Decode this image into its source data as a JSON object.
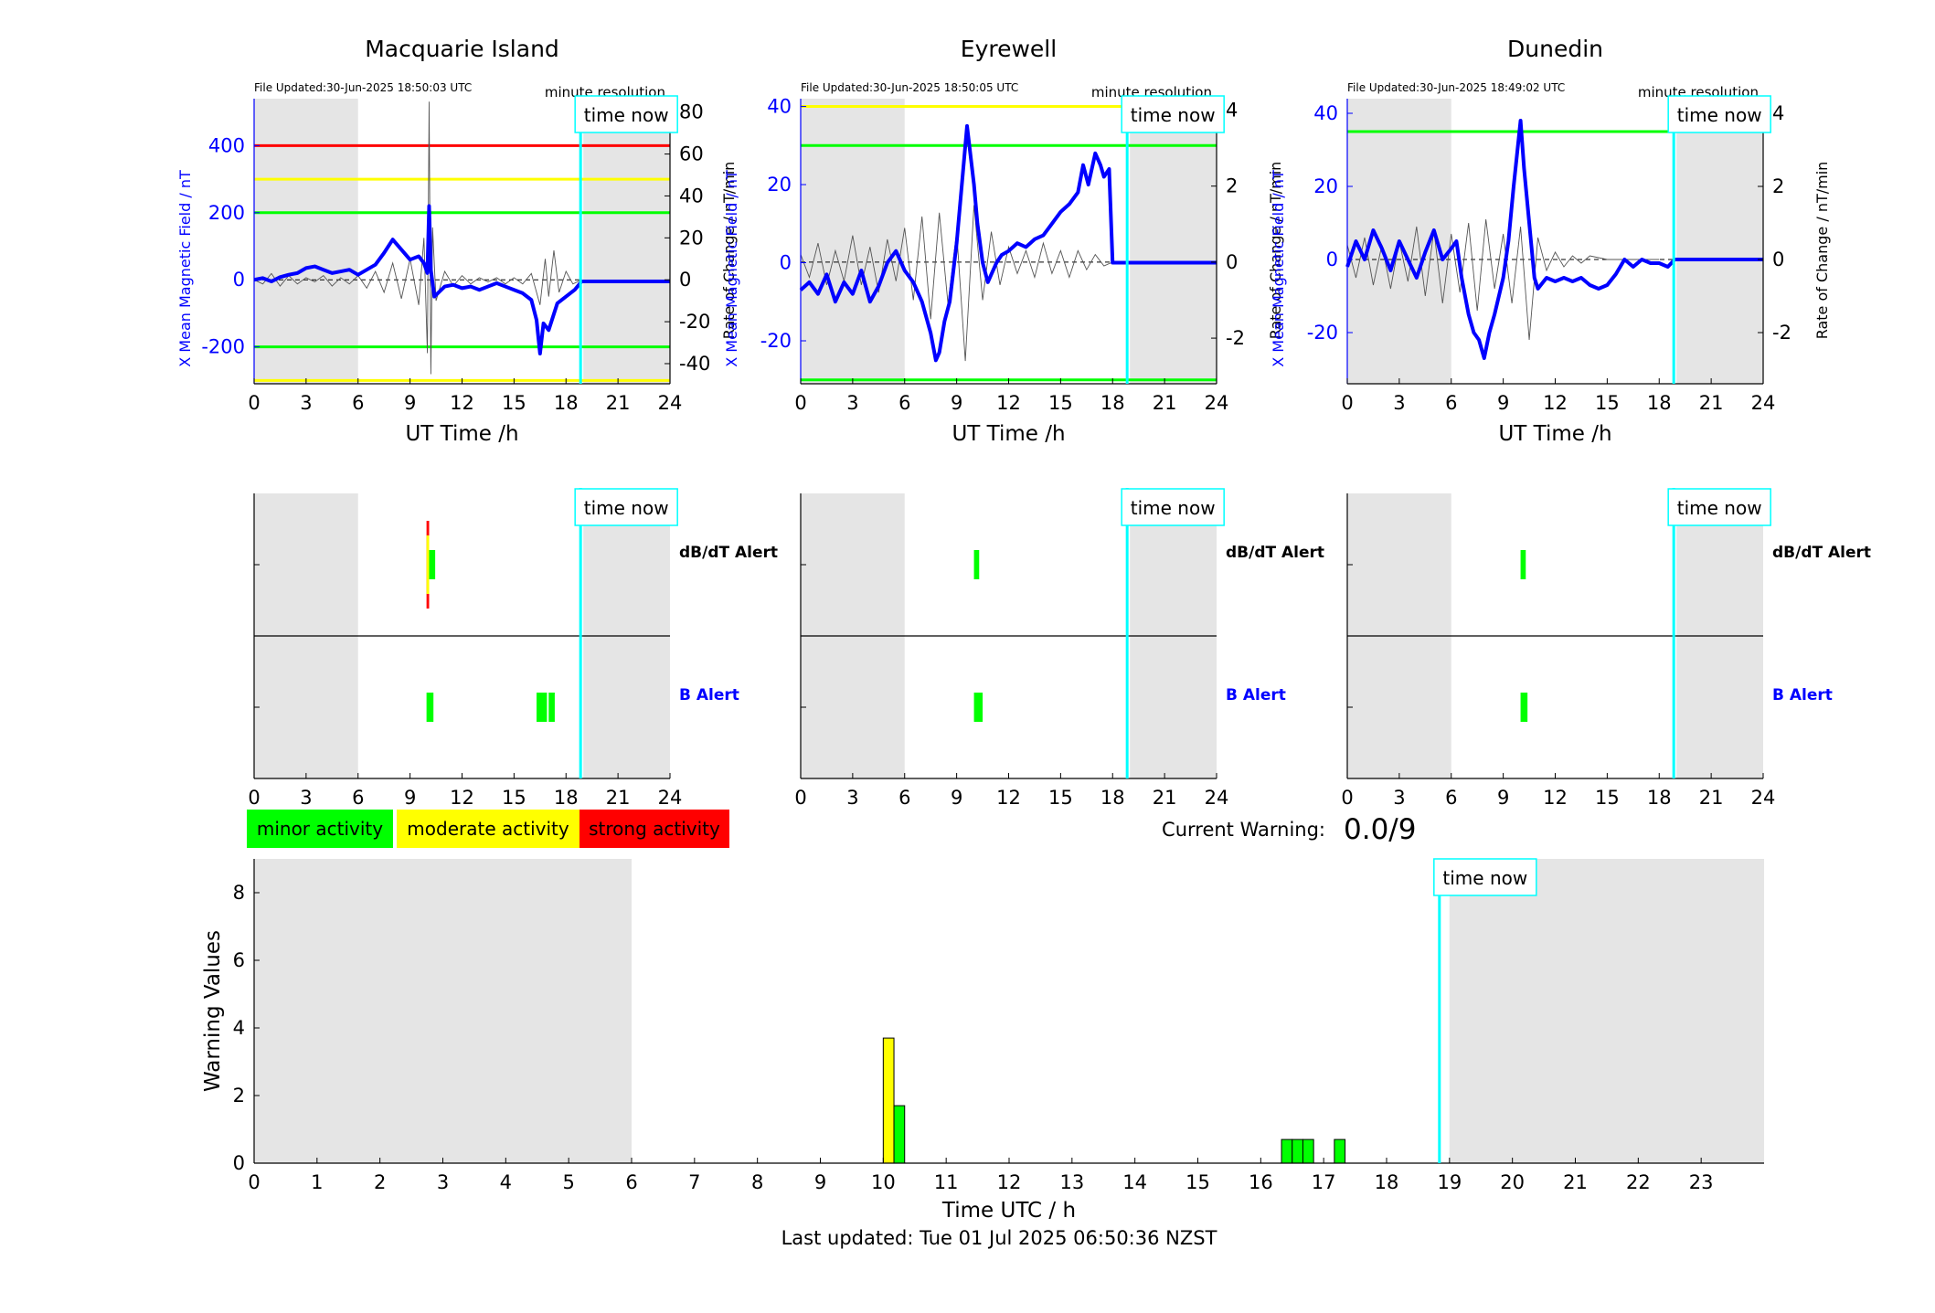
{
  "page": {
    "current_warning_label": "Current Warning:",
    "current_warning_value": "0.0/9",
    "last_updated": "Last updated: Tue 01 Jul 2025 06:50:36 NZST",
    "time_now_label": "time now",
    "now_hour": 18.84
  },
  "legend": [
    {
      "label": "minor activity",
      "color": "#00ff00"
    },
    {
      "label": "moderate activity",
      "color": "#ffff00"
    },
    {
      "label": "strong activity",
      "color": "#ff0000"
    }
  ],
  "colors": {
    "blue": "#0000ff",
    "night_shade": "#e5e5e5",
    "time_now": "#00ffff",
    "minor": "#00ff00",
    "moderate": "#ffff00",
    "strong": "#ff0000"
  },
  "chart_data": [
    {
      "type": "line",
      "title": "Macquarie Island",
      "file_updated": "File Updated:30-Jun-2025 18:50:03 UTC",
      "resolution_note": "minute resolution",
      "xlabel": "UT Time /h",
      "ylabel_left": "X Mean Magnetic Field / nT",
      "ylabel_right": "Rate of Change / nT/min",
      "xlim": [
        0,
        24
      ],
      "ylim_left": [
        -310,
        540
      ],
      "ylim_right": [
        -49.6,
        86.4
      ],
      "xticks": [
        0,
        3,
        6,
        9,
        12,
        15,
        18,
        21,
        24
      ],
      "yticks_left": [
        -200,
        0,
        200,
        400
      ],
      "yticks_right": [
        -40,
        -20,
        0,
        20,
        40,
        60,
        80
      ],
      "night_shading": [
        [
          0,
          6
        ],
        [
          19,
          24
        ]
      ],
      "thresholds": [
        {
          "value": 400,
          "color": "#ff0000"
        },
        {
          "value": 300,
          "color": "#ffff00"
        },
        {
          "value": 200,
          "color": "#00ff00"
        },
        {
          "value": -200,
          "color": "#00ff00"
        },
        {
          "value": -300,
          "color": "#ffff00"
        }
      ],
      "series": [
        {
          "values_x": [
            0,
            0.5,
            1,
            1.5,
            2,
            2.5,
            3,
            3.5,
            4,
            4.5,
            5,
            5.5,
            6,
            6.5,
            7,
            7.5,
            8,
            8.5,
            9,
            9.5,
            9.8,
            10,
            10.1,
            10.2,
            10.4,
            10.6,
            11,
            11.5,
            12,
            12.5,
            13,
            13.5,
            14,
            14.5,
            15,
            15.5,
            16,
            16.3,
            16.5,
            16.7,
            17,
            17.5,
            18,
            18.5,
            18.9,
            24
          ],
          "values_y": [
            0,
            5,
            -5,
            8,
            15,
            20,
            35,
            40,
            30,
            20,
            25,
            30,
            15,
            30,
            45,
            80,
            120,
            90,
            60,
            70,
            50,
            20,
            220,
            30,
            -50,
            -40,
            -20,
            -15,
            -25,
            -20,
            -30,
            -20,
            -10,
            -20,
            -30,
            -40,
            -60,
            -120,
            -220,
            -130,
            -150,
            -70,
            -50,
            -30,
            -5,
            -5
          ]
        }
      ],
      "rate_series": [
        {
          "values_x": [
            0,
            0.5,
            1,
            1.5,
            2,
            2.5,
            3,
            3.5,
            4,
            4.5,
            5,
            5.5,
            6,
            6.5,
            7,
            7.5,
            8,
            8.5,
            9,
            9.5,
            9.8,
            10,
            10.1,
            10.2,
            10.3,
            10.5,
            11,
            11.5,
            12,
            12.5,
            13,
            13.5,
            14,
            14.5,
            15,
            15.5,
            16,
            16.5,
            16.8,
            17,
            17.3,
            17.6,
            18,
            18.4,
            18.9
          ],
          "values_y": [
            0,
            -2,
            3,
            -3,
            2,
            -2,
            1,
            -1,
            2,
            -3,
            1,
            -2,
            2,
            -4,
            4,
            -6,
            8,
            -9,
            10,
            -12,
            20,
            -35,
            85,
            -45,
            25,
            -10,
            4,
            -3,
            2,
            -2,
            1,
            -1,
            1,
            -2,
            1,
            -2,
            3,
            -12,
            10,
            -8,
            14,
            -6,
            4,
            -2,
            0
          ]
        }
      ]
    },
    {
      "type": "line",
      "title": "Eyrewell",
      "file_updated": "File Updated:30-Jun-2025 18:50:05 UTC",
      "resolution_note": "minute resolution",
      "xlabel": "UT Time /h",
      "ylabel_left": "X Mean Magnetic Field / nT",
      "ylabel_right": "Rate of Change / nT/min",
      "xlim": [
        0,
        24
      ],
      "ylim_left": [
        -31,
        42
      ],
      "ylim_right": [
        -3.2,
        4.3
      ],
      "xticks": [
        0,
        3,
        6,
        9,
        12,
        15,
        18,
        21,
        24
      ],
      "yticks_left": [
        -20,
        0,
        20,
        40
      ],
      "yticks_right": [
        -2,
        0,
        2,
        4
      ],
      "night_shading": [
        [
          0,
          6
        ],
        [
          19,
          24
        ]
      ],
      "thresholds": [
        {
          "value": 40,
          "color": "#ffff00"
        },
        {
          "value": 30,
          "color": "#00ff00"
        },
        {
          "value": -30,
          "color": "#00ff00"
        }
      ],
      "series": [
        {
          "values_x": [
            0,
            0.5,
            1,
            1.5,
            2,
            2.5,
            3,
            3.5,
            4,
            4.5,
            5,
            5.5,
            6,
            6.5,
            7,
            7.5,
            7.8,
            8,
            8.3,
            8.6,
            9,
            9.3,
            9.6,
            10,
            10.2,
            10.5,
            10.8,
            11,
            11.3,
            11.6,
            12,
            12.5,
            13,
            13.5,
            14,
            14.5,
            15,
            15.5,
            16,
            16.3,
            16.6,
            17,
            17.3,
            17.5,
            17.8,
            18.0,
            18.05,
            18.5,
            24
          ],
          "values_y": [
            -7,
            -5,
            -8,
            -3,
            -10,
            -5,
            -8,
            -2,
            -10,
            -6,
            0,
            3,
            -2,
            -5,
            -10,
            -18,
            -25,
            -23,
            -15,
            -10,
            5,
            20,
            35,
            20,
            10,
            0,
            -5,
            -3,
            0,
            2,
            3,
            5,
            4,
            6,
            7,
            10,
            13,
            15,
            18,
            25,
            20,
            28,
            25,
            22,
            24,
            0,
            0,
            0,
            0
          ]
        }
      ],
      "rate_series": [
        {
          "values_x": [
            0,
            0.5,
            1,
            1.5,
            2,
            2.5,
            3,
            3.5,
            4,
            4.5,
            5,
            5.5,
            6,
            6.5,
            7,
            7.5,
            8,
            8.5,
            9,
            9.5,
            10,
            10.5,
            11,
            11.5,
            12,
            12.5,
            13,
            13.5,
            14,
            14.5,
            15,
            15.5,
            16,
            16.5,
            17,
            17.5,
            18
          ],
          "values_y": [
            0.2,
            -0.4,
            0.5,
            -0.6,
            0.3,
            -0.5,
            0.7,
            -0.6,
            0.4,
            -0.8,
            0.6,
            -0.5,
            0.9,
            -1.0,
            1.2,
            -1.5,
            1.3,
            -1.1,
            0.8,
            -2.6,
            1.5,
            -1.0,
            0.8,
            -0.6,
            0.4,
            -0.3,
            0.3,
            -0.4,
            0.5,
            -0.3,
            0.3,
            -0.4,
            0.3,
            -0.2,
            0.2,
            -0.1,
            0
          ]
        }
      ]
    },
    {
      "type": "line",
      "title": "Dunedin",
      "file_updated": "File Updated:30-Jun-2025 18:49:02 UTC",
      "resolution_note": "minute resolution",
      "xlabel": "UT Time /h",
      "ylabel_left": "X Mean Magnetic Field / nT",
      "ylabel_right": "Rate of Change / nT/min",
      "xlim": [
        0,
        24
      ],
      "ylim_left": [
        -34,
        44
      ],
      "ylim_right": [
        -3.4,
        4.4
      ],
      "xticks": [
        0,
        3,
        6,
        9,
        12,
        15,
        18,
        21,
        24
      ],
      "yticks_left": [
        -20,
        0,
        20,
        40
      ],
      "yticks_right": [
        -2,
        0,
        2,
        4
      ],
      "night_shading": [
        [
          0,
          6
        ],
        [
          19,
          24
        ]
      ],
      "thresholds": [
        {
          "value": 35,
          "color": "#00ff00"
        }
      ],
      "series": [
        {
          "values_x": [
            0,
            0.5,
            1,
            1.5,
            2,
            2.5,
            3,
            3.5,
            4,
            4.5,
            5,
            5.5,
            6,
            6.3,
            6.6,
            7,
            7.3,
            7.6,
            7.9,
            8.2,
            8.5,
            9,
            9.3,
            9.6,
            10,
            10.2,
            10.5,
            10.8,
            11,
            11.5,
            12,
            12.5,
            13,
            13.5,
            14,
            14.5,
            15,
            15.5,
            16,
            16.5,
            17,
            17.5,
            18,
            18.5,
            18.9,
            24
          ],
          "values_y": [
            -2,
            5,
            0,
            8,
            3,
            -3,
            5,
            0,
            -5,
            2,
            8,
            0,
            3,
            5,
            -5,
            -15,
            -20,
            -22,
            -27,
            -20,
            -15,
            -5,
            5,
            20,
            38,
            25,
            10,
            -5,
            -8,
            -5,
            -6,
            -5,
            -6,
            -5,
            -7,
            -8,
            -7,
            -4,
            0,
            -2,
            0,
            -1,
            -1,
            -2,
            0,
            0
          ]
        }
      ],
      "rate_series": [
        {
          "values_x": [
            0,
            0.5,
            1,
            1.5,
            2,
            2.5,
            3,
            3.5,
            4,
            4.5,
            5,
            5.5,
            6,
            6.5,
            7,
            7.5,
            8,
            8.5,
            9,
            9.5,
            10,
            10.5,
            11,
            11.5,
            12,
            12.5,
            13,
            13.5,
            14,
            15,
            16,
            17,
            18
          ],
          "values_y": [
            0.4,
            -0.5,
            0.6,
            -0.7,
            0.4,
            -0.8,
            0.5,
            -0.6,
            0.9,
            -1.0,
            0.8,
            -1.2,
            0.7,
            -0.9,
            1.0,
            -1.4,
            1.1,
            -0.8,
            0.7,
            -1.2,
            0.9,
            -2.2,
            0.6,
            -0.3,
            0.2,
            -0.2,
            0.1,
            -0.1,
            0.1,
            0,
            0,
            0,
            0
          ]
        }
      ]
    },
    {
      "type": "bar",
      "title": "Macquarie Island alerts",
      "xlim": [
        0,
        24
      ],
      "xticks": [
        0,
        3,
        6,
        9,
        12,
        15,
        18,
        21,
        24
      ],
      "night_shading": [
        [
          0,
          6
        ],
        [
          19,
          24
        ]
      ],
      "rows": [
        "dB/dT Alert",
        "B Alert"
      ],
      "row_colors": [
        "#000000",
        "#0000ff"
      ],
      "alerts": {
        "dbdt": [
          {
            "x0": 9.95,
            "x1": 10.1,
            "level": 3
          },
          {
            "x0": 10.1,
            "x1": 10.45,
            "level": 1
          }
        ],
        "b": [
          {
            "x0": 9.95,
            "x1": 10.35,
            "level": 1
          },
          {
            "x0": 16.3,
            "x1": 16.9,
            "level": 1
          },
          {
            "x0": 17.0,
            "x1": 17.35,
            "level": 1
          }
        ]
      }
    },
    {
      "type": "bar",
      "title": "Eyrewell alerts",
      "xlim": [
        0,
        24
      ],
      "xticks": [
        0,
        3,
        6,
        9,
        12,
        15,
        18,
        21,
        24
      ],
      "night_shading": [
        [
          0,
          6
        ],
        [
          19,
          24
        ]
      ],
      "rows": [
        "dB/dT Alert",
        "B Alert"
      ],
      "row_colors": [
        "#000000",
        "#0000ff"
      ],
      "alerts": {
        "dbdt": [
          {
            "x0": 10.0,
            "x1": 10.3,
            "level": 1
          }
        ],
        "b": [
          {
            "x0": 10.0,
            "x1": 10.5,
            "level": 1
          }
        ]
      }
    },
    {
      "type": "bar",
      "title": "Dunedin alerts",
      "xlim": [
        0,
        24
      ],
      "xticks": [
        0,
        3,
        6,
        9,
        12,
        15,
        18,
        21,
        24
      ],
      "night_shading": [
        [
          0,
          6
        ],
        [
          19,
          24
        ]
      ],
      "rows": [
        "dB/dT Alert",
        "B Alert"
      ],
      "row_colors": [
        "#000000",
        "#0000ff"
      ],
      "alerts": {
        "dbdt": [
          {
            "x0": 10.0,
            "x1": 10.3,
            "level": 1
          }
        ],
        "b": [
          {
            "x0": 10.0,
            "x1": 10.4,
            "level": 1
          }
        ]
      }
    },
    {
      "type": "bar",
      "title": "",
      "xlabel": "Time UTC / h",
      "ylabel": "Warning Values",
      "xlim": [
        0,
        24
      ],
      "ylim": [
        0,
        9
      ],
      "xticks": [
        0,
        1,
        2,
        3,
        4,
        5,
        6,
        7,
        8,
        9,
        10,
        11,
        12,
        13,
        14,
        15,
        16,
        17,
        18,
        19,
        20,
        21,
        22,
        23
      ],
      "yticks": [
        0,
        2,
        4,
        6,
        8
      ],
      "night_shading": [
        [
          0,
          6
        ],
        [
          19,
          24
        ]
      ],
      "bars": [
        {
          "x": 10.0,
          "width": 0.17,
          "value": 3.7,
          "color": "#ffff00"
        },
        {
          "x": 10.17,
          "width": 0.17,
          "value": 1.7,
          "color": "#00ff00"
        },
        {
          "x": 16.33,
          "width": 0.17,
          "value": 0.7,
          "color": "#00ff00"
        },
        {
          "x": 16.5,
          "width": 0.17,
          "value": 0.7,
          "color": "#00ff00"
        },
        {
          "x": 16.67,
          "width": 0.17,
          "value": 0.7,
          "color": "#00ff00"
        },
        {
          "x": 17.17,
          "width": 0.17,
          "value": 0.7,
          "color": "#00ff00"
        }
      ]
    }
  ]
}
